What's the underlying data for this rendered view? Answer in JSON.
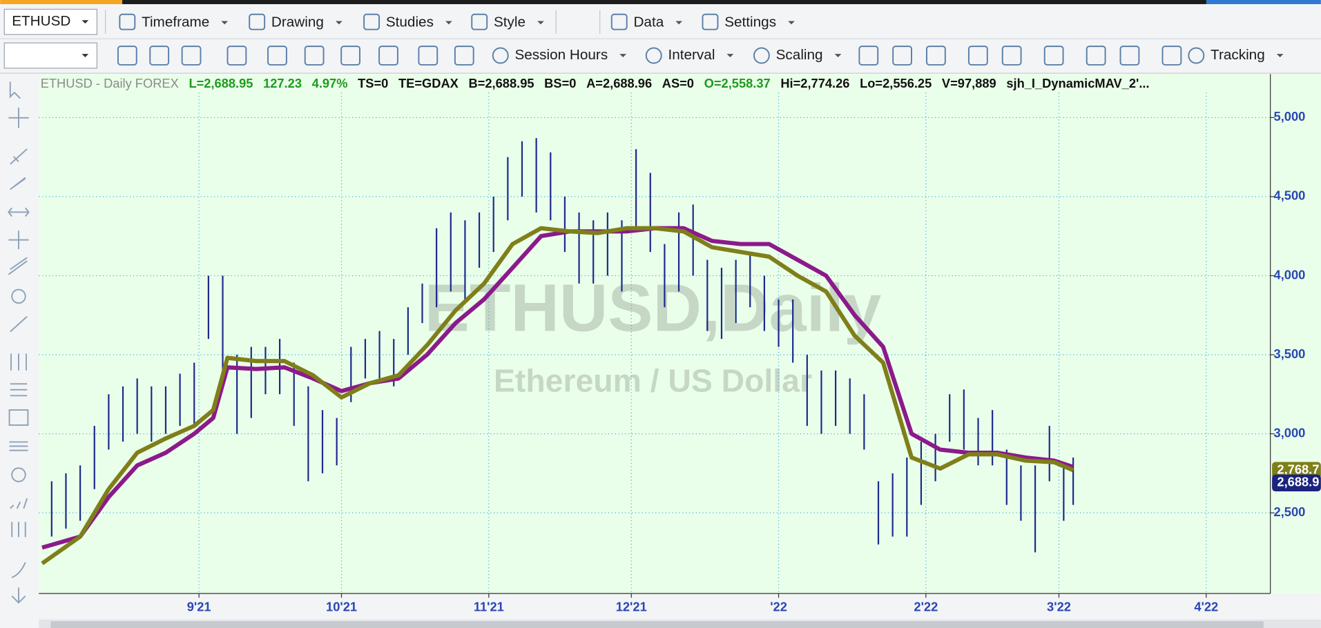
{
  "symbol_box": "ETHUSD",
  "toolbar": [
    "Timeframe",
    "Drawing",
    "Studies",
    "Style",
    "Data",
    "Settings"
  ],
  "toolbar2": [
    "Session Hours",
    "Interval",
    "Scaling",
    "Tracking"
  ],
  "info_line": [
    {
      "text": "ETHUSD - Daily  FOREX",
      "color": "#8a8a8a"
    },
    {
      "text": "L=2,688.95",
      "color": "#1f9a1f"
    },
    {
      "text": "127.23",
      "color": "#1f9a1f"
    },
    {
      "text": "4.97%",
      "color": "#1f9a1f"
    },
    {
      "text": "TS=0",
      "color": "#111111"
    },
    {
      "text": "TE=GDAX",
      "color": "#111111"
    },
    {
      "text": "B=2,688.95",
      "color": "#111111"
    },
    {
      "text": "BS=0",
      "color": "#111111"
    },
    {
      "text": "A=2,688.96",
      "color": "#111111"
    },
    {
      "text": "AS=0",
      "color": "#111111"
    },
    {
      "text": "O=2,558.37",
      "color": "#1f9a1f"
    },
    {
      "text": "Hi=2,774.26",
      "color": "#111111"
    },
    {
      "text": "Lo=2,556.25",
      "color": "#111111"
    },
    {
      "text": "V=97,889",
      "color": "#111111"
    },
    {
      "text": "sjh_I_DynamicMAV_2'...",
      "color": "#111111"
    }
  ],
  "chart_data": {
    "type": "ohlc",
    "watermark": "ETHUSD,Daily",
    "watermark_subtitle": "Ethereum / US Dollar",
    "xlim": [
      -33.7,
      225.5
    ],
    "xticks": [
      {
        "value": 0,
        "label": "9'21"
      },
      {
        "value": 30,
        "label": "10'21"
      },
      {
        "value": 61,
        "label": "11'21"
      },
      {
        "value": 91,
        "label": "12'21"
      },
      {
        "value": 122,
        "label": "'22"
      },
      {
        "value": 153,
        "label": "2'22"
      },
      {
        "value": 181,
        "label": "3'22"
      },
      {
        "value": 212,
        "label": "4'22"
      }
    ],
    "ylim": [
      1990,
      5275
    ],
    "yticks": [
      {
        "value": 2500,
        "label": "2,500"
      },
      {
        "value": 3000,
        "label": "3,000"
      },
      {
        "value": 3500,
        "label": "3,500"
      },
      {
        "value": 4000,
        "label": "4,000"
      },
      {
        "value": 4500,
        "label": "4,500"
      },
      {
        "value": 5000,
        "label": "5,000"
      }
    ],
    "grid": true,
    "bar_color": "#1a2a8c",
    "x": [
      -31,
      -28,
      -25,
      -22,
      -19,
      -16,
      -13,
      -10,
      -7,
      -4,
      -1,
      2,
      5,
      8,
      11,
      14,
      17,
      20,
      23,
      26,
      29,
      32,
      35,
      38,
      41,
      44,
      47,
      50,
      53,
      56,
      59,
      62,
      65,
      68,
      71,
      74,
      77,
      80,
      83,
      86,
      89,
      92,
      95,
      98,
      101,
      104,
      107,
      110,
      113,
      116,
      119,
      122,
      125,
      128,
      131,
      134,
      137,
      140,
      143,
      146,
      149,
      152,
      155,
      158,
      161,
      164,
      167,
      170,
      173,
      176,
      179,
      182,
      184
    ],
    "high": [
      2700,
      2750,
      2800,
      3050,
      3250,
      3300,
      3350,
      3300,
      3300,
      3380,
      3450,
      4000,
      4000,
      3500,
      3550,
      3550,
      3600,
      3450,
      3300,
      3150,
      3100,
      3550,
      3600,
      3650,
      3600,
      3800,
      3950,
      4300,
      4400,
      4350,
      4400,
      4500,
      4750,
      4850,
      4870,
      4780,
      4500,
      4400,
      4350,
      4400,
      4350,
      4800,
      4650,
      4200,
      4400,
      4450,
      4100,
      4050,
      4100,
      4150,
      4000,
      3850,
      3850,
      3500,
      3400,
      3400,
      3350,
      3250,
      2700,
      2750,
      2850,
      2950,
      3000,
      3250,
      3280,
      3100,
      3150,
      2900,
      2800,
      2800,
      3050,
      2800,
      2850
    ],
    "low": [
      2350,
      2400,
      2450,
      2650,
      2900,
      2950,
      3000,
      2950,
      3000,
      3050,
      3050,
      3600,
      3300,
      3000,
      3100,
      3250,
      3250,
      3050,
      2700,
      2750,
      2800,
      3200,
      3350,
      3350,
      3300,
      3500,
      3700,
      3800,
      3900,
      3850,
      4050,
      4150,
      4350,
      4500,
      4400,
      4350,
      4150,
      3950,
      3950,
      4000,
      3900,
      4300,
      4150,
      3800,
      3900,
      4000,
      3650,
      3600,
      3700,
      3800,
      3650,
      3550,
      3450,
      3050,
      3000,
      3050,
      3000,
      2900,
      2300,
      2350,
      2350,
      2550,
      2700,
      2950,
      2900,
      2800,
      2800,
      2550,
      2450,
      2250,
      2700,
      2450,
      2550
    ],
    "lines": [
      {
        "color": "#8b1a8b",
        "x": [
          -33,
          -25,
          -19,
          -13,
          -7,
          -1,
          3,
          6,
          12,
          18,
          24,
          30,
          36,
          42,
          48,
          54,
          60,
          66,
          72,
          78,
          84,
          90,
          96,
          102,
          108,
          114,
          120,
          126,
          132,
          138,
          144,
          150,
          156,
          162,
          168,
          174,
          180,
          184
        ],
        "values": [
          2280,
          2350,
          2600,
          2800,
          2880,
          3000,
          3100,
          3420,
          3410,
          3420,
          3350,
          3270,
          3320,
          3350,
          3500,
          3700,
          3850,
          4050,
          4250,
          4280,
          4280,
          4280,
          4300,
          4300,
          4220,
          4200,
          4200,
          4100,
          4000,
          3750,
          3550,
          3000,
          2900,
          2880,
          2880,
          2850,
          2830,
          2790
        ]
      },
      {
        "color": "#7f7f1a",
        "x": [
          -33,
          -25,
          -19,
          -13,
          -7,
          -1,
          3,
          6,
          12,
          18,
          24,
          30,
          36,
          42,
          48,
          54,
          60,
          66,
          72,
          78,
          84,
          90,
          96,
          102,
          108,
          114,
          120,
          126,
          132,
          138,
          144,
          150,
          156,
          162,
          168,
          174,
          180,
          184
        ],
        "values": [
          2180,
          2350,
          2650,
          2880,
          2970,
          3050,
          3150,
          3480,
          3460,
          3460,
          3370,
          3230,
          3320,
          3370,
          3560,
          3780,
          3950,
          4200,
          4300,
          4280,
          4270,
          4300,
          4300,
          4280,
          4180,
          4150,
          4120,
          4000,
          3900,
          3620,
          3450,
          2850,
          2780,
          2870,
          2870,
          2830,
          2820,
          2770
        ]
      }
    ],
    "price_tags": [
      {
        "value": 2768.7,
        "label": "2,768.7",
        "color": "#7f7f1a"
      },
      {
        "value": 2688.9,
        "label": "2,688.9",
        "color": "#1a237e"
      }
    ]
  }
}
